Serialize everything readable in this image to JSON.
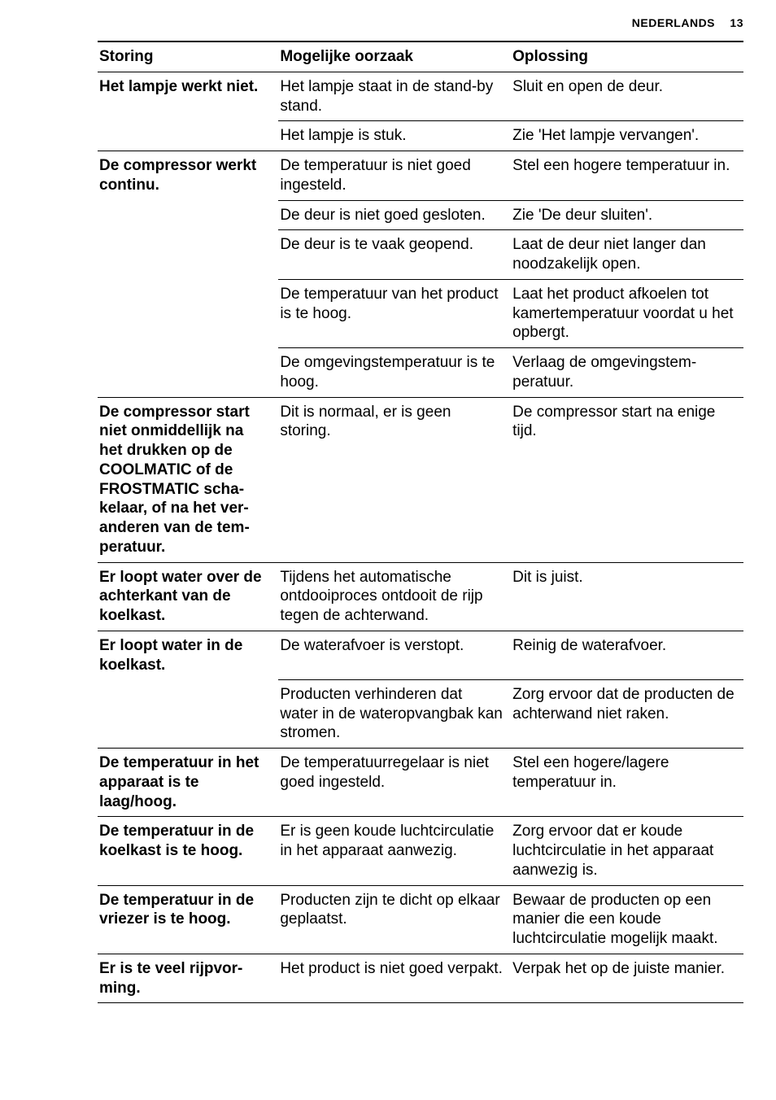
{
  "header": {
    "section_label": "NEDERLANDS",
    "page_number": "13"
  },
  "table": {
    "columns": [
      "Storing",
      "Mogelijke oorzaak",
      "Oplossing"
    ],
    "rows": [
      {
        "storing": "Het lampje werkt niet.",
        "oorzaak": "Het lampje staat in de stand-by stand.",
        "oplossing": "Sluit en open de deur.",
        "merge_storing": false
      },
      {
        "storing": "",
        "oorzaak": "Het lampje is stuk.",
        "oplossing": "Zie 'Het lampje vervan­gen'.",
        "merge_storing": true
      },
      {
        "storing": "De compressor werkt continu.",
        "oorzaak": "De temperatuur is niet goed ingesteld.",
        "oplossing": "Stel een hogere tempera­tuur in.",
        "merge_storing": false
      },
      {
        "storing": "",
        "oorzaak": "De deur is niet goed ge­sloten.",
        "oplossing": "Zie 'De deur sluiten'.",
        "merge_storing": true
      },
      {
        "storing": "",
        "oorzaak": "De deur is te vaak geo­pend.",
        "oplossing": "Laat de deur niet langer dan noodzakelijk open.",
        "merge_storing": true
      },
      {
        "storing": "",
        "oorzaak": "De temperatuur van het product is te hoog.",
        "oplossing": "Laat het product afkoelen tot kamertemperatuur voordat u het opbergt.",
        "merge_storing": true
      },
      {
        "storing": "",
        "oorzaak": "De omgevingstempera­tuur is te hoog.",
        "oplossing": "Verlaag de omgevingstem­peratuur.",
        "merge_storing": true
      },
      {
        "storing": "De compressor start niet onmiddellijk na het drukken op de COOLMATIC of de FROSTMATIC scha­kelaar, of na het ver­anderen van de tem­peratuur.",
        "oorzaak": "Dit is normaal, er is geen storing.",
        "oplossing": "De compressor start na enige tijd.",
        "merge_storing": false
      },
      {
        "storing": "Er loopt water over de achterkant van de koelkast.",
        "oorzaak": "Tijdens het automatische ontdooiproces ontdooit de rijp tegen de achter­wand.",
        "oplossing": "Dit is juist.",
        "merge_storing": false
      },
      {
        "storing": "Er loopt water in de koelkast.",
        "oorzaak": "De waterafvoer is ver­stopt.",
        "oplossing": "Reinig de waterafvoer.",
        "merge_storing": false
      },
      {
        "storing": "",
        "oorzaak": "Producten verhinderen dat water in de waterop­vangbak kan stromen.",
        "oplossing": "Zorg ervoor dat de pro­ducten de achterwand niet raken.",
        "merge_storing": true
      },
      {
        "storing": "De temperatuur in het apparaat is te laag/hoog.",
        "oorzaak": "De temperatuurregelaar is niet goed ingesteld.",
        "oplossing": "Stel een hogere/lagere temperatuur in.",
        "merge_storing": false
      },
      {
        "storing": "De temperatuur in de koelkast is te hoog.",
        "oorzaak": "Er is geen koude luchtcir­culatie in het apparaat aanwezig.",
        "oplossing": "Zorg ervoor dat er koude luchtcirculatie in het appa­raat aanwezig is.",
        "merge_storing": false
      },
      {
        "storing": "De temperatuur in de vriezer is te hoog.",
        "oorzaak": "Producten zijn te dicht op elkaar geplaatst.",
        "oplossing": "Bewaar de producten op een manier die een koude luchtcirculatie mogelijk maakt.",
        "merge_storing": false
      },
      {
        "storing": "Er is te veel rijpvor­ming.",
        "oorzaak": "Het product is niet goed verpakt.",
        "oplossing": "Verpak het op de juiste manier.",
        "merge_storing": false
      }
    ]
  }
}
